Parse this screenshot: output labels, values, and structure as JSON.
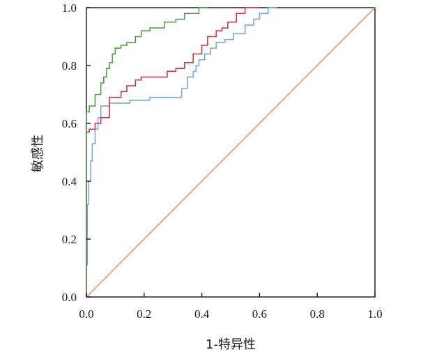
{
  "chart_data": {
    "type": "line",
    "title": "",
    "xlabel": "1-特异性",
    "ylabel": "敏感性",
    "xlim": [
      0,
      1
    ],
    "ylim": [
      0,
      1
    ],
    "xticks": [
      "0.0",
      "0.2",
      "0.4",
      "0.6",
      "0.8",
      "1.0"
    ],
    "yticks": [
      "0.0",
      "0.2",
      "0.4",
      "0.6",
      "0.8",
      "1.0"
    ],
    "grid": false,
    "legend": "none",
    "series": [
      {
        "color": "#5a9a4a",
        "x": [
          0,
          0,
          0.01,
          0.01,
          0.03,
          0.03,
          0.05,
          0.05,
          0.06,
          0.06,
          0.07,
          0.07,
          0.08,
          0.08,
          0.09,
          0.09,
          0.1,
          0.1,
          0.12,
          0.12,
          0.14,
          0.14,
          0.17,
          0.17,
          0.19,
          0.19,
          0.22,
          0.22,
          0.27,
          0.27,
          0.31,
          0.31,
          0.34,
          0.34,
          0.39,
          0.39,
          0.42
        ],
        "y": [
          0,
          0.64,
          0.64,
          0.66,
          0.66,
          0.7,
          0.7,
          0.74,
          0.74,
          0.76,
          0.76,
          0.79,
          0.79,
          0.81,
          0.81,
          0.84,
          0.84,
          0.86,
          0.86,
          0.87,
          0.87,
          0.88,
          0.88,
          0.9,
          0.9,
          0.92,
          0.92,
          0.93,
          0.93,
          0.95,
          0.95,
          0.96,
          0.96,
          0.98,
          0.98,
          1.0,
          1.0
        ]
      },
      {
        "color": "#c8384e",
        "x": [
          0,
          0,
          0.01,
          0.01,
          0.03,
          0.03,
          0.05,
          0.05,
          0.08,
          0.08,
          0.12,
          0.12,
          0.14,
          0.14,
          0.17,
          0.17,
          0.19,
          0.19,
          0.28,
          0.28,
          0.31,
          0.31,
          0.34,
          0.34,
          0.37,
          0.37,
          0.4,
          0.4,
          0.42,
          0.42,
          0.45,
          0.45,
          0.47,
          0.47,
          0.49,
          0.49,
          0.52,
          0.52,
          0.55,
          0.55,
          0.6
        ],
        "y": [
          0,
          0.57,
          0.57,
          0.58,
          0.58,
          0.6,
          0.6,
          0.62,
          0.62,
          0.69,
          0.69,
          0.71,
          0.71,
          0.73,
          0.73,
          0.75,
          0.75,
          0.76,
          0.76,
          0.78,
          0.78,
          0.79,
          0.79,
          0.81,
          0.81,
          0.84,
          0.84,
          0.87,
          0.87,
          0.9,
          0.9,
          0.92,
          0.92,
          0.93,
          0.93,
          0.95,
          0.95,
          0.98,
          0.98,
          1.0,
          1.0
        ]
      },
      {
        "color": "#7aa6d8",
        "x": [
          0,
          0,
          0.003,
          0.003,
          0.008,
          0.008,
          0.015,
          0.015,
          0.02,
          0.02,
          0.03,
          0.03,
          0.04,
          0.04,
          0.05,
          0.05,
          0.08,
          0.08,
          0.15,
          0.15,
          0.22,
          0.22,
          0.33,
          0.33,
          0.35,
          0.35,
          0.37,
          0.37,
          0.38,
          0.38,
          0.39,
          0.39,
          0.41,
          0.41,
          0.43,
          0.43,
          0.45,
          0.45,
          0.48,
          0.48,
          0.51,
          0.51,
          0.55,
          0.55,
          0.58,
          0.58,
          0.6,
          0.6,
          0.63,
          0.63,
          0.66
        ],
        "y": [
          0,
          0.11,
          0.11,
          0.32,
          0.32,
          0.4,
          0.4,
          0.47,
          0.47,
          0.53,
          0.53,
          0.58,
          0.58,
          0.62,
          0.62,
          0.66,
          0.66,
          0.67,
          0.67,
          0.68,
          0.68,
          0.69,
          0.69,
          0.72,
          0.72,
          0.76,
          0.76,
          0.78,
          0.78,
          0.8,
          0.8,
          0.82,
          0.82,
          0.84,
          0.84,
          0.86,
          0.86,
          0.88,
          0.88,
          0.89,
          0.89,
          0.91,
          0.91,
          0.94,
          0.94,
          0.96,
          0.96,
          0.98,
          0.98,
          1.0,
          1.0
        ]
      },
      {
        "color": "#f0907c",
        "x": [
          0,
          1
        ],
        "y": [
          0,
          1
        ]
      }
    ]
  }
}
